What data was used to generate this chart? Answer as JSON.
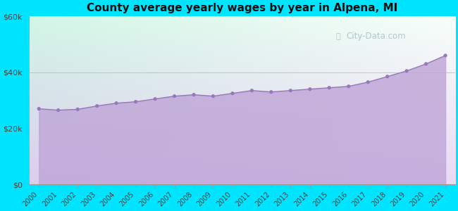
{
  "title": "County average yearly wages by year in Alpena, MI",
  "years": [
    2000,
    2001,
    2002,
    2003,
    2004,
    2005,
    2006,
    2007,
    2008,
    2009,
    2010,
    2011,
    2012,
    2013,
    2014,
    2015,
    2016,
    2017,
    2018,
    2019,
    2020,
    2021
  ],
  "wages": [
    27000,
    26500,
    26800,
    28000,
    29000,
    29500,
    30500,
    31500,
    32000,
    31500,
    32500,
    33500,
    33000,
    33500,
    34000,
    34500,
    35000,
    36500,
    38500,
    40500,
    43000,
    46000
  ],
  "ylim": [
    0,
    60000
  ],
  "yticks": [
    0,
    20000,
    40000,
    60000
  ],
  "ytick_labels": [
    "$0",
    "$20k",
    "$40k",
    "$60k"
  ],
  "fill_color_top": "#c8b0e0",
  "fill_color_bottom": "#d8c0e8",
  "line_color": "#9878b8",
  "dot_color": "#9878b8",
  "bg_outer": "#00e5ff",
  "title_fontsize": 11,
  "watermark_text": "City-Data.com",
  "watermark_color": "#a0b8b8",
  "watermark_alpha": 0.75,
  "grid_color": "#e8b0c0",
  "grid_alpha": 0.5
}
